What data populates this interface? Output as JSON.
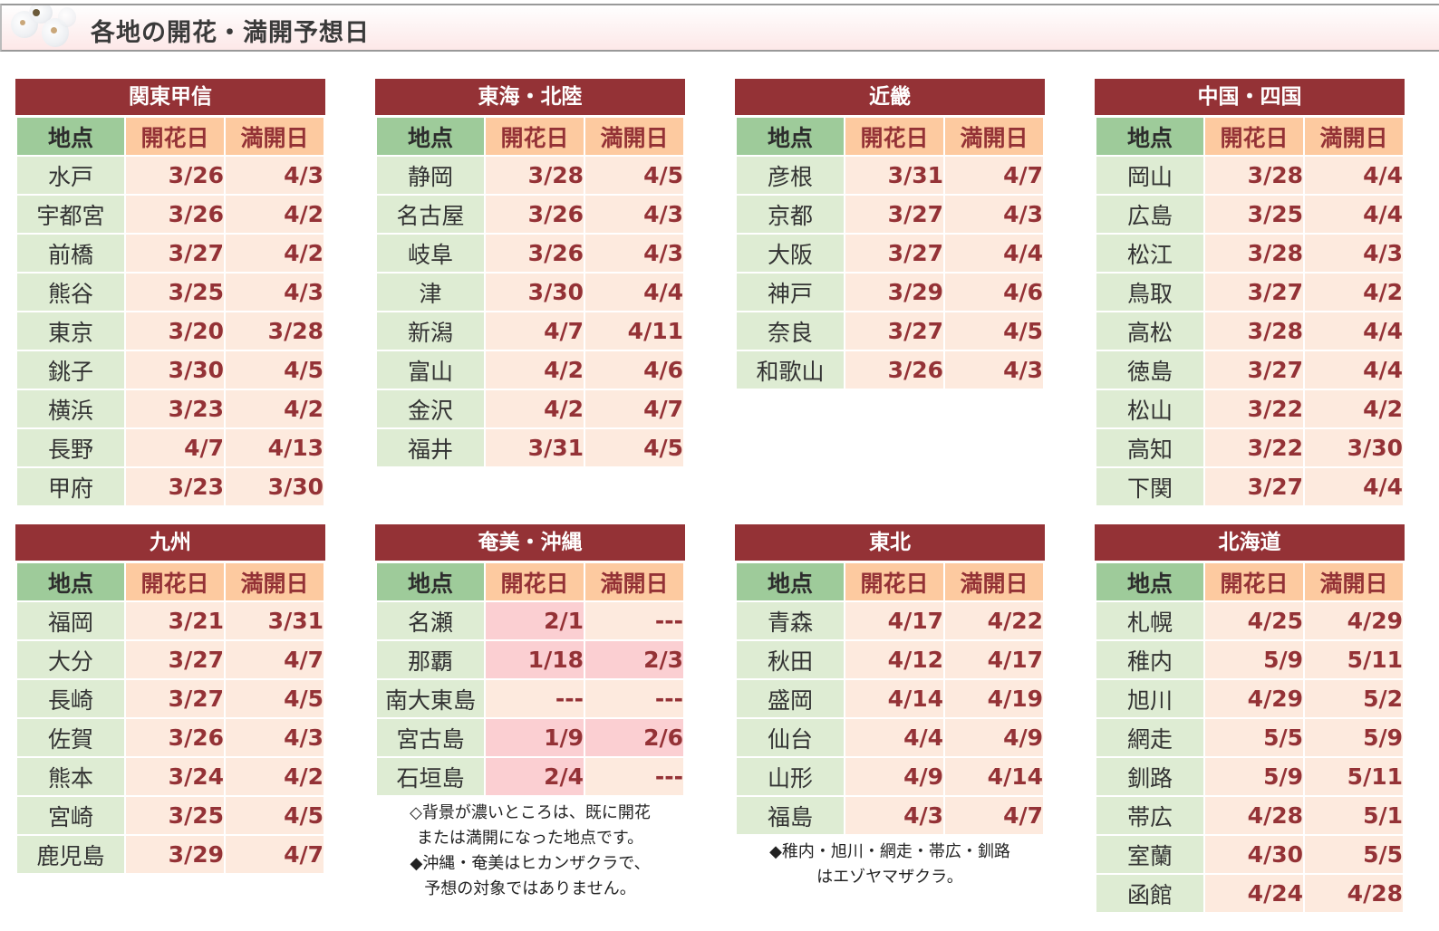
{
  "header": {
    "title": "各地の開花・満開予想日",
    "icon": "cherry-blossom-image"
  },
  "columns": {
    "place": "地点",
    "bloom": "開花日",
    "full": "満開日"
  },
  "colors": {
    "title_bar": "#943236",
    "place_header": "#9ecb9a",
    "date_header": "#fdcaa0",
    "place_cell": "#deecd3",
    "date_cell": "#fdeade",
    "date_cell_done": "#fbcfd2",
    "date_text": "#943236"
  },
  "regions": [
    {
      "name": "関東甲信",
      "rows": [
        {
          "place": "水戸",
          "bloom": "3/26",
          "full": "4/3"
        },
        {
          "place": "宇都宮",
          "bloom": "3/26",
          "full": "4/2"
        },
        {
          "place": "前橋",
          "bloom": "3/27",
          "full": "4/2"
        },
        {
          "place": "熊谷",
          "bloom": "3/25",
          "full": "4/3"
        },
        {
          "place": "東京",
          "bloom": "3/20",
          "full": "3/28"
        },
        {
          "place": "銚子",
          "bloom": "3/30",
          "full": "4/5"
        },
        {
          "place": "横浜",
          "bloom": "3/23",
          "full": "4/2"
        },
        {
          "place": "長野",
          "bloom": "4/7",
          "full": "4/13"
        },
        {
          "place": "甲府",
          "bloom": "3/23",
          "full": "3/30"
        }
      ]
    },
    {
      "name": "東海・北陸",
      "rows": [
        {
          "place": "静岡",
          "bloom": "3/28",
          "full": "4/5"
        },
        {
          "place": "名古屋",
          "bloom": "3/26",
          "full": "4/3"
        },
        {
          "place": "岐阜",
          "bloom": "3/26",
          "full": "4/3"
        },
        {
          "place": "津",
          "bloom": "3/30",
          "full": "4/4"
        },
        {
          "place": "新潟",
          "bloom": "4/7",
          "full": "4/11"
        },
        {
          "place": "富山",
          "bloom": "4/2",
          "full": "4/6"
        },
        {
          "place": "金沢",
          "bloom": "4/2",
          "full": "4/7"
        },
        {
          "place": "福井",
          "bloom": "3/31",
          "full": "4/5"
        }
      ]
    },
    {
      "name": "近畿",
      "rows": [
        {
          "place": "彦根",
          "bloom": "3/31",
          "full": "4/7"
        },
        {
          "place": "京都",
          "bloom": "3/27",
          "full": "4/3"
        },
        {
          "place": "大阪",
          "bloom": "3/27",
          "full": "4/4"
        },
        {
          "place": "神戸",
          "bloom": "3/29",
          "full": "4/6"
        },
        {
          "place": "奈良",
          "bloom": "3/27",
          "full": "4/5"
        },
        {
          "place": "和歌山",
          "bloom": "3/26",
          "full": "4/3"
        }
      ]
    },
    {
      "name": "中国・四国",
      "rows": [
        {
          "place": "岡山",
          "bloom": "3/28",
          "full": "4/4"
        },
        {
          "place": "広島",
          "bloom": "3/25",
          "full": "4/4"
        },
        {
          "place": "松江",
          "bloom": "3/28",
          "full": "4/3"
        },
        {
          "place": "鳥取",
          "bloom": "3/27",
          "full": "4/2"
        },
        {
          "place": "高松",
          "bloom": "3/28",
          "full": "4/4"
        },
        {
          "place": "徳島",
          "bloom": "3/27",
          "full": "4/4"
        },
        {
          "place": "松山",
          "bloom": "3/22",
          "full": "4/2"
        },
        {
          "place": "高知",
          "bloom": "3/22",
          "full": "3/30"
        },
        {
          "place": "下関",
          "bloom": "3/27",
          "full": "4/4"
        }
      ]
    },
    {
      "name": "九州",
      "rows": [
        {
          "place": "福岡",
          "bloom": "3/21",
          "full": "3/31"
        },
        {
          "place": "大分",
          "bloom": "3/27",
          "full": "4/7"
        },
        {
          "place": "長崎",
          "bloom": "3/27",
          "full": "4/5"
        },
        {
          "place": "佐賀",
          "bloom": "3/26",
          "full": "4/3"
        },
        {
          "place": "熊本",
          "bloom": "3/24",
          "full": "4/2"
        },
        {
          "place": "宮崎",
          "bloom": "3/25",
          "full": "4/5"
        },
        {
          "place": "鹿児島",
          "bloom": "3/29",
          "full": "4/7"
        }
      ]
    },
    {
      "name": "奄美・沖縄",
      "rows": [
        {
          "place": "名瀬",
          "bloom": "2/1",
          "full": "---",
          "bloom_done": true,
          "full_done": false
        },
        {
          "place": "那覇",
          "bloom": "1/18",
          "full": "2/3",
          "bloom_done": true,
          "full_done": true
        },
        {
          "place": "南大東島",
          "bloom": "---",
          "full": "---",
          "bloom_done": false,
          "full_done": false
        },
        {
          "place": "宮古島",
          "bloom": "1/9",
          "full": "2/6",
          "bloom_done": true,
          "full_done": true
        },
        {
          "place": "石垣島",
          "bloom": "2/4",
          "full": "---",
          "bloom_done": true,
          "full_done": false
        }
      ],
      "notes": [
        "◇背景が濃いところは、既に開花",
        "または満開になった地点です。",
        "◆沖縄・奄美はヒカンザクラで、",
        "予想の対象ではありません。"
      ]
    },
    {
      "name": "東北",
      "rows": [
        {
          "place": "青森",
          "bloom": "4/17",
          "full": "4/22"
        },
        {
          "place": "秋田",
          "bloom": "4/12",
          "full": "4/17"
        },
        {
          "place": "盛岡",
          "bloom": "4/14",
          "full": "4/19"
        },
        {
          "place": "仙台",
          "bloom": "4/4",
          "full": "4/9"
        },
        {
          "place": "山形",
          "bloom": "4/9",
          "full": "4/14"
        },
        {
          "place": "福島",
          "bloom": "4/3",
          "full": "4/7"
        }
      ],
      "notes": [
        "◆稚内・旭川・網走・帯広・釧路",
        "はエゾヤマザクラ。"
      ]
    },
    {
      "name": "北海道",
      "rows": [
        {
          "place": "札幌",
          "bloom": "4/25",
          "full": "4/29"
        },
        {
          "place": "稚内",
          "bloom": "5/9",
          "full": "5/11"
        },
        {
          "place": "旭川",
          "bloom": "4/29",
          "full": "5/2"
        },
        {
          "place": "網走",
          "bloom": "5/5",
          "full": "5/9"
        },
        {
          "place": "釧路",
          "bloom": "5/9",
          "full": "5/11"
        },
        {
          "place": "帯広",
          "bloom": "4/28",
          "full": "5/1"
        },
        {
          "place": "室蘭",
          "bloom": "4/30",
          "full": "5/5"
        },
        {
          "place": "函館",
          "bloom": "4/24",
          "full": "4/28"
        }
      ]
    }
  ]
}
